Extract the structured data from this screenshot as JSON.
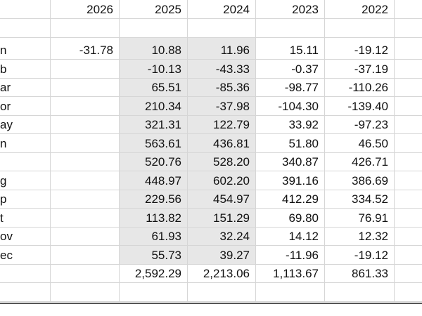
{
  "headers": [
    "",
    "2026",
    "2025",
    "2024",
    "2023",
    "2022"
  ],
  "rows": [
    {
      "label": "n",
      "c2026": "-31.78",
      "c2025": "10.88",
      "c2024": "11.96",
      "c2023": "15.11",
      "c2022": "-19.12"
    },
    {
      "label": "b",
      "c2026": "",
      "c2025": "-10.13",
      "c2024": "-43.33",
      "c2023": "-0.37",
      "c2022": "-37.19"
    },
    {
      "label": "ar",
      "c2026": "",
      "c2025": "65.51",
      "c2024": "-85.36",
      "c2023": "-98.77",
      "c2022": "-110.26"
    },
    {
      "label": "or",
      "c2026": "",
      "c2025": "210.34",
      "c2024": "-37.98",
      "c2023": "-104.30",
      "c2022": "-139.40"
    },
    {
      "label": "ay",
      "c2026": "",
      "c2025": "321.31",
      "c2024": "122.79",
      "c2023": "33.92",
      "c2022": "-97.23"
    },
    {
      "label": "n",
      "c2026": "",
      "c2025": "563.61",
      "c2024": "436.81",
      "c2023": "51.80",
      "c2022": "46.50"
    },
    {
      "label": "",
      "c2026": "",
      "c2025": "520.76",
      "c2024": "528.20",
      "c2023": "340.87",
      "c2022": "426.71"
    },
    {
      "label": "g",
      "c2026": "",
      "c2025": "448.97",
      "c2024": "602.20",
      "c2023": "391.16",
      "c2022": "386.69"
    },
    {
      "label": "p",
      "c2026": "",
      "c2025": "229.56",
      "c2024": "454.97",
      "c2023": "412.29",
      "c2022": "334.52"
    },
    {
      "label": "t",
      "c2026": "",
      "c2025": "113.82",
      "c2024": "151.29",
      "c2023": "69.80",
      "c2022": "76.91"
    },
    {
      "label": "ov",
      "c2026": "",
      "c2025": "61.93",
      "c2024": "32.24",
      "c2023": "14.12",
      "c2022": "12.32"
    },
    {
      "label": "ec",
      "c2026": "",
      "c2025": "55.73",
      "c2024": "39.27",
      "c2023": "-11.96",
      "c2022": "-19.12"
    },
    {
      "label": "",
      "c2026": "",
      "c2025": "2,592.29",
      "c2024": "2,213.06",
      "c2023": "1,113.67",
      "c2022": "861.33"
    }
  ],
  "colors": {
    "shade": "#e7e7e7",
    "gridline": "#d6d6d6"
  }
}
